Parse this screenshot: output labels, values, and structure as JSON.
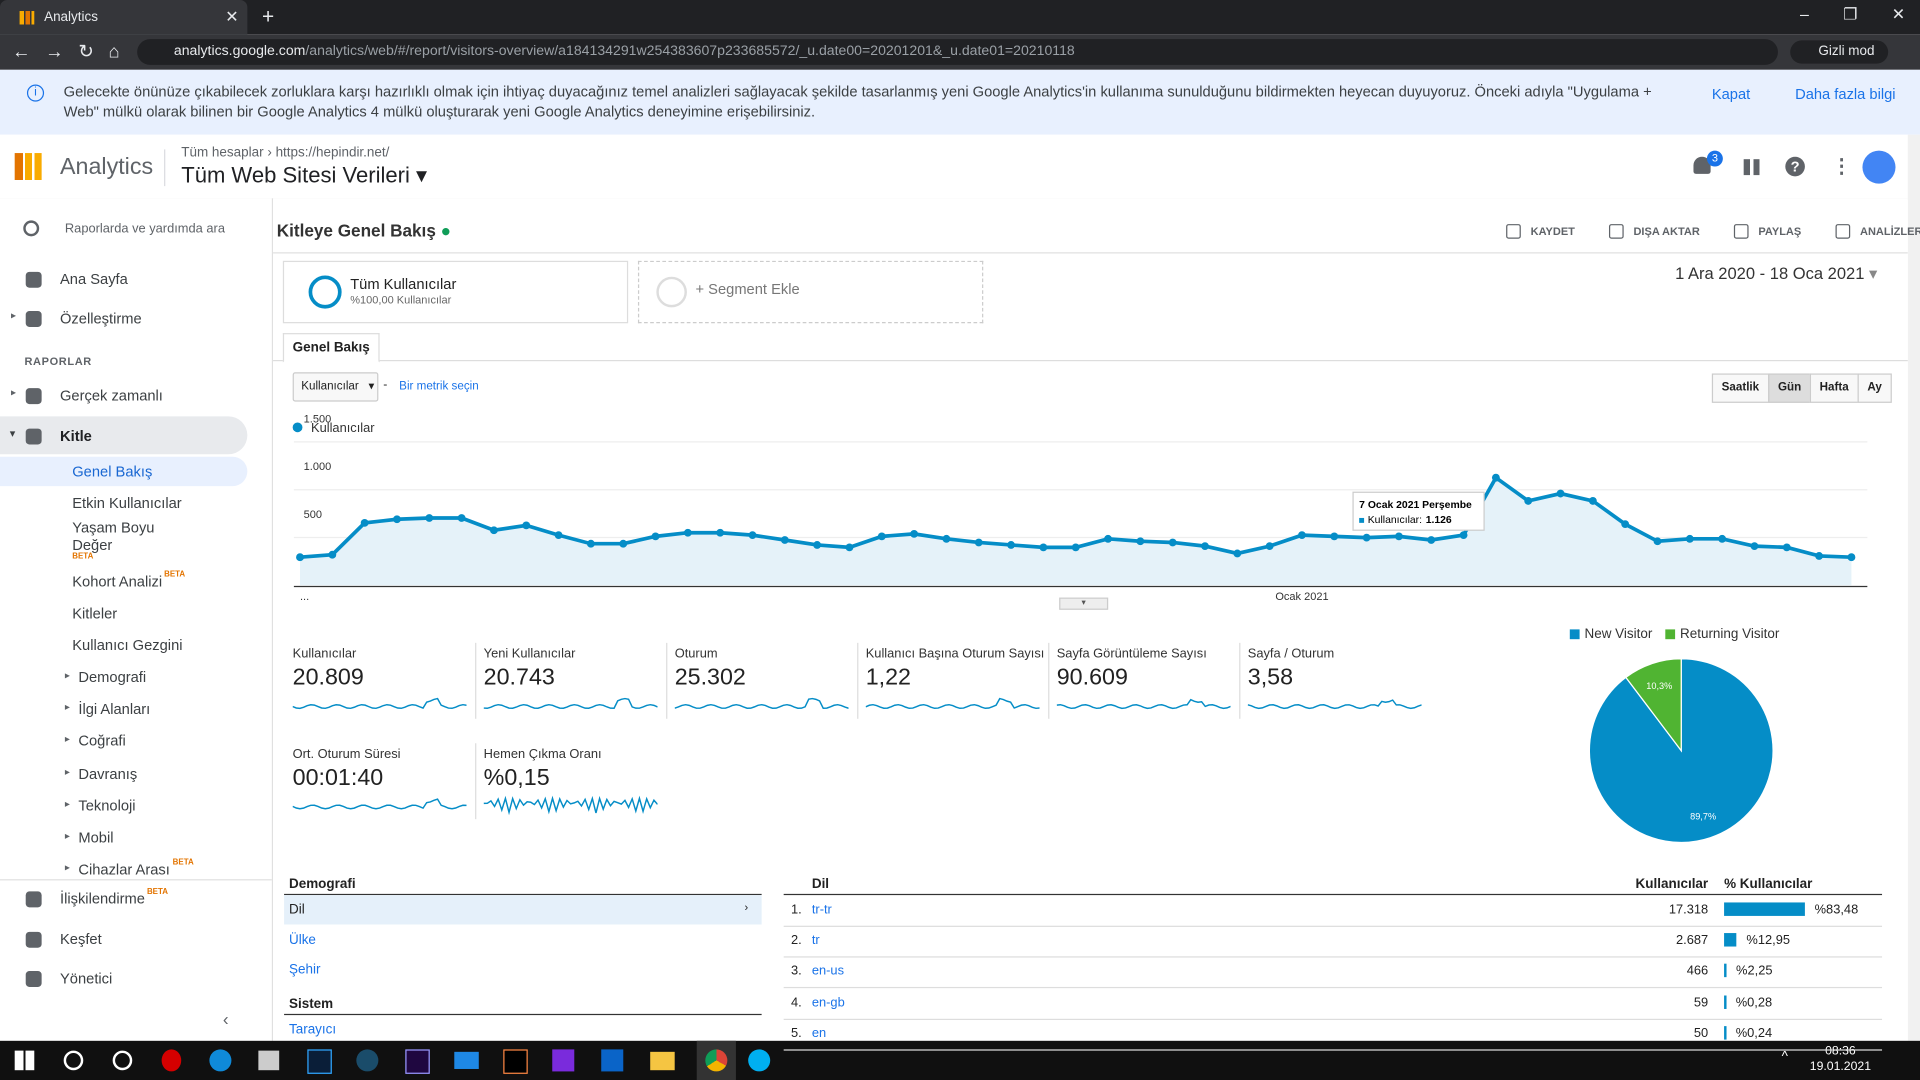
{
  "browser": {
    "tab_title": "Analytics",
    "url_host": "analytics.google.com",
    "url_path": "/analytics/web/#/report/visitors-overview/a184134291w254383607p233685572/_u.date00=20201201&_u.date01=20210118",
    "mode": "Gizli mod"
  },
  "banner": {
    "text": "Gelecekte önünüze çıkabilecek zorluklara karşı hazırlıklı olmak için ihtiyaç duyacağınız temel analizleri sağlayacak şekilde tasarlanmış yeni Google Analytics'in kullanıma sunulduğunu bildirmekten heyecan duyuyoruz. Önceki adıyla \"Uygulama + Web\" mülkü olarak bilinen bir Google Analytics 4 mülkü oluşturarak yeni Google Analytics deneyimine erişebilirsiniz.",
    "close": "Kapat",
    "more": "Daha fazla bilgi"
  },
  "header": {
    "app": "Analytics",
    "crumb_all": "Tüm hesaplar",
    "crumb_site": "https://hepindir.net/",
    "property": "Tüm Web Sitesi Verileri",
    "notifications": "3"
  },
  "sidebar": {
    "search": "Raporlarda ve yardımda ara",
    "top": [
      {
        "label": "Ana Sayfa"
      },
      {
        "label": "Özelleştirme"
      }
    ],
    "section": "RAPORLAR",
    "reports": [
      {
        "label": "Gerçek zamanlı"
      },
      {
        "label": "Kitle",
        "children": [
          {
            "label": "Genel Bakış"
          },
          {
            "label": "Etkin Kullanıcılar"
          },
          {
            "label": "Yaşam Boyu Değer",
            "badge": "BETA"
          },
          {
            "label": "Kohort Analizi",
            "badge": "BETA"
          },
          {
            "label": "Kitleler"
          },
          {
            "label": "Kullanıcı Gezgini"
          },
          {
            "label": "Demografi"
          },
          {
            "label": "İlgi Alanları"
          },
          {
            "label": "Coğrafi"
          },
          {
            "label": "Davranış"
          },
          {
            "label": "Teknoloji"
          },
          {
            "label": "Mobil"
          },
          {
            "label": "Cihazlar Arası",
            "badge": "BETA"
          }
        ]
      }
    ],
    "bottom": [
      {
        "label": "İlişkilendirme",
        "badge": "BETA"
      },
      {
        "label": "Keşfet"
      },
      {
        "label": "Yönetici"
      }
    ]
  },
  "report": {
    "title": "Kitleye Genel Bakış",
    "actions": [
      "KAYDET",
      "DIŞA AKTAR",
      "PAYLAŞ",
      "ANALİZLER"
    ],
    "segment_all": "Tüm Kullanıcılar",
    "segment_all_sub": "%100,00 Kullanıcılar",
    "segment_add": "+ Segment Ekle",
    "date_range": "1 Ara 2020 - 18 Oca 2021",
    "tab": "Genel Bakış",
    "metric_select": "Kullanıcılar",
    "metric_sep": "-",
    "metric_link": "Bir metrik seçin",
    "granularity": [
      "Saatlik",
      "Gün",
      "Hafta",
      "Ay"
    ]
  },
  "chart_data": [
    {
      "type": "line",
      "categories": [
        "...",
        null,
        null,
        null,
        null,
        null,
        null,
        null,
        null,
        null,
        null,
        null,
        null,
        null,
        null,
        null,
        null,
        null,
        null,
        null,
        null,
        null,
        null,
        null,
        null,
        null,
        null,
        null,
        null,
        null,
        null,
        "Ocak 2021",
        null,
        null,
        null,
        null,
        null,
        null,
        null,
        null,
        null,
        null,
        null,
        null,
        null,
        null,
        null,
        null,
        null
      ],
      "series": [
        {
          "name": "Kullanıcılar",
          "color": "#058dc7",
          "values": [
            294,
            320,
            653,
            691,
            704,
            704,
            576,
            627,
            525,
            435,
            435,
            512,
            550,
            550,
            525,
            474,
            422,
            397,
            512,
            538,
            486,
            448,
            422,
            397,
            397,
            486,
            461,
            448,
            410,
            333,
            410,
            525,
            512,
            499,
            512,
            474,
            525,
            1126,
            883,
            960,
            883,
            640,
            461,
            486,
            486,
            410,
            397,
            307,
            294
          ]
        }
      ],
      "ylim": [
        0,
        1550
      ],
      "yticks": [
        500,
        {
          "value": 1000,
          "label": "1.000"
        },
        {
          "value": 1500,
          "label": "1.500"
        }
      ],
      "grid": true,
      "tooltip": {
        "title": "7 Ocak 2021 Perşembe",
        "label": "Kullanıcılar:",
        "value": "1.126"
      }
    },
    {
      "type": "pie",
      "categories": [
        "New Visitor",
        "Returning Visitor"
      ],
      "values": [
        89.7,
        10.3
      ],
      "value_labels": [
        "89,7%",
        "10,3%"
      ],
      "colors": [
        "#058dc7",
        "#50b432"
      ],
      "legend": "top"
    }
  ],
  "metrics": [
    {
      "label": "Kullanıcılar",
      "value": "20.809"
    },
    {
      "label": "Yeni Kullanıcılar",
      "value": "20.743"
    },
    {
      "label": "Oturum",
      "value": "25.302"
    },
    {
      "label": "Kullanıcı Başına Oturum Sayısı",
      "value": "1,22"
    },
    {
      "label": "Sayfa Görüntüleme Sayısı",
      "value": "90.609"
    },
    {
      "label": "Sayfa / Oturum",
      "value": "3,58"
    },
    {
      "label": "Ort. Oturum Süresi",
      "value": "00:01:40"
    },
    {
      "label": "Hemen Çıkma Oranı",
      "value": "%0,15"
    }
  ],
  "demographics": {
    "title": "Demografi",
    "items": [
      "Dil",
      "Ülke",
      "Şehir"
    ],
    "system_title": "Sistem",
    "system_items": [
      "Tarayıcı"
    ]
  },
  "language": {
    "headers": [
      "Dil",
      "Kullanıcılar",
      "% Kullanıcılar"
    ],
    "rows": [
      {
        "rank": "1.",
        "name": "tr-tr",
        "users": "17.318",
        "share": 83.48,
        "share_label": "%83,48"
      },
      {
        "rank": "2.",
        "name": "tr",
        "users": "2.687",
        "share": 12.95,
        "share_label": "%12,95"
      },
      {
        "rank": "3.",
        "name": "en-us",
        "users": "466",
        "share": 2.25,
        "share_label": "%2,25"
      },
      {
        "rank": "4.",
        "name": "en-gb",
        "users": "59",
        "share": 0.28,
        "share_label": "%0,28"
      },
      {
        "rank": "5.",
        "name": "en",
        "users": "50",
        "share": 0.24,
        "share_label": "%0,24"
      }
    ]
  },
  "taskbar": {
    "time": "08:36",
    "date": "19.01.2021"
  }
}
